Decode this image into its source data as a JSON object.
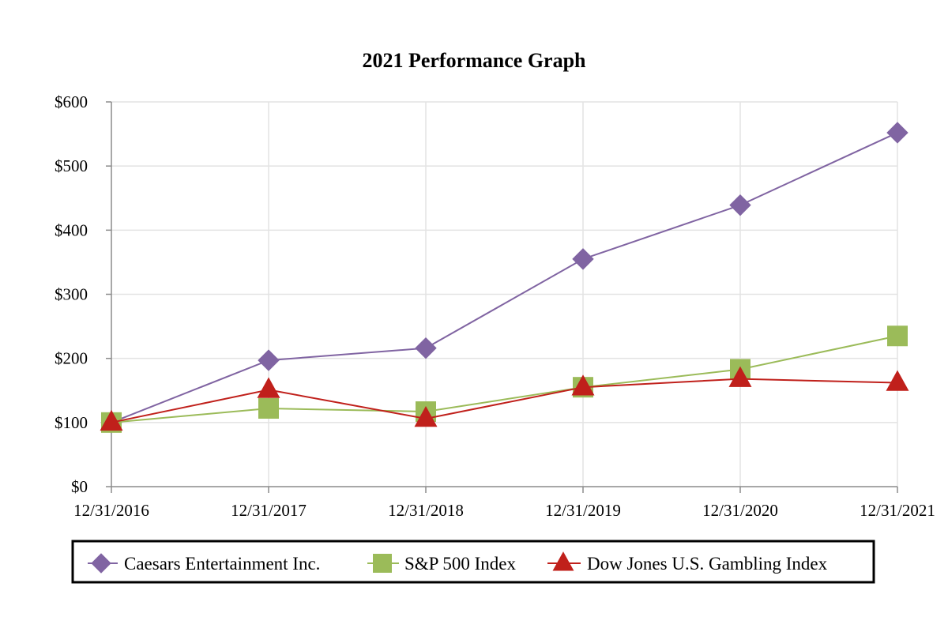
{
  "chart_data": {
    "type": "line",
    "title": "2021 Performance Graph",
    "xlabel": "",
    "ylabel": "",
    "categories": [
      "12/31/2016",
      "12/31/2017",
      "12/31/2018",
      "12/31/2019",
      "12/31/2020",
      "12/31/2021"
    ],
    "yticks": [
      "$0",
      "$100",
      "$200",
      "$300",
      "$400",
      "$500",
      "$600"
    ],
    "ylim": [
      0,
      600
    ],
    "grid": true,
    "legend_position": "bottom",
    "series": [
      {
        "name": "Caesars Entertainment Inc.",
        "marker": "diamond",
        "color": "#8064a2",
        "values": [
          100,
          197,
          216,
          355,
          439,
          552
        ]
      },
      {
        "name": "S&P 500 Index",
        "marker": "square",
        "color": "#9bbb59",
        "values": [
          100,
          122,
          117,
          155,
          183,
          235
        ]
      },
      {
        "name": "Dow Jones U.S. Gambling Index",
        "marker": "triangle",
        "color": "#c0201b",
        "values": [
          100,
          151,
          106,
          155,
          168,
          162
        ]
      }
    ]
  }
}
